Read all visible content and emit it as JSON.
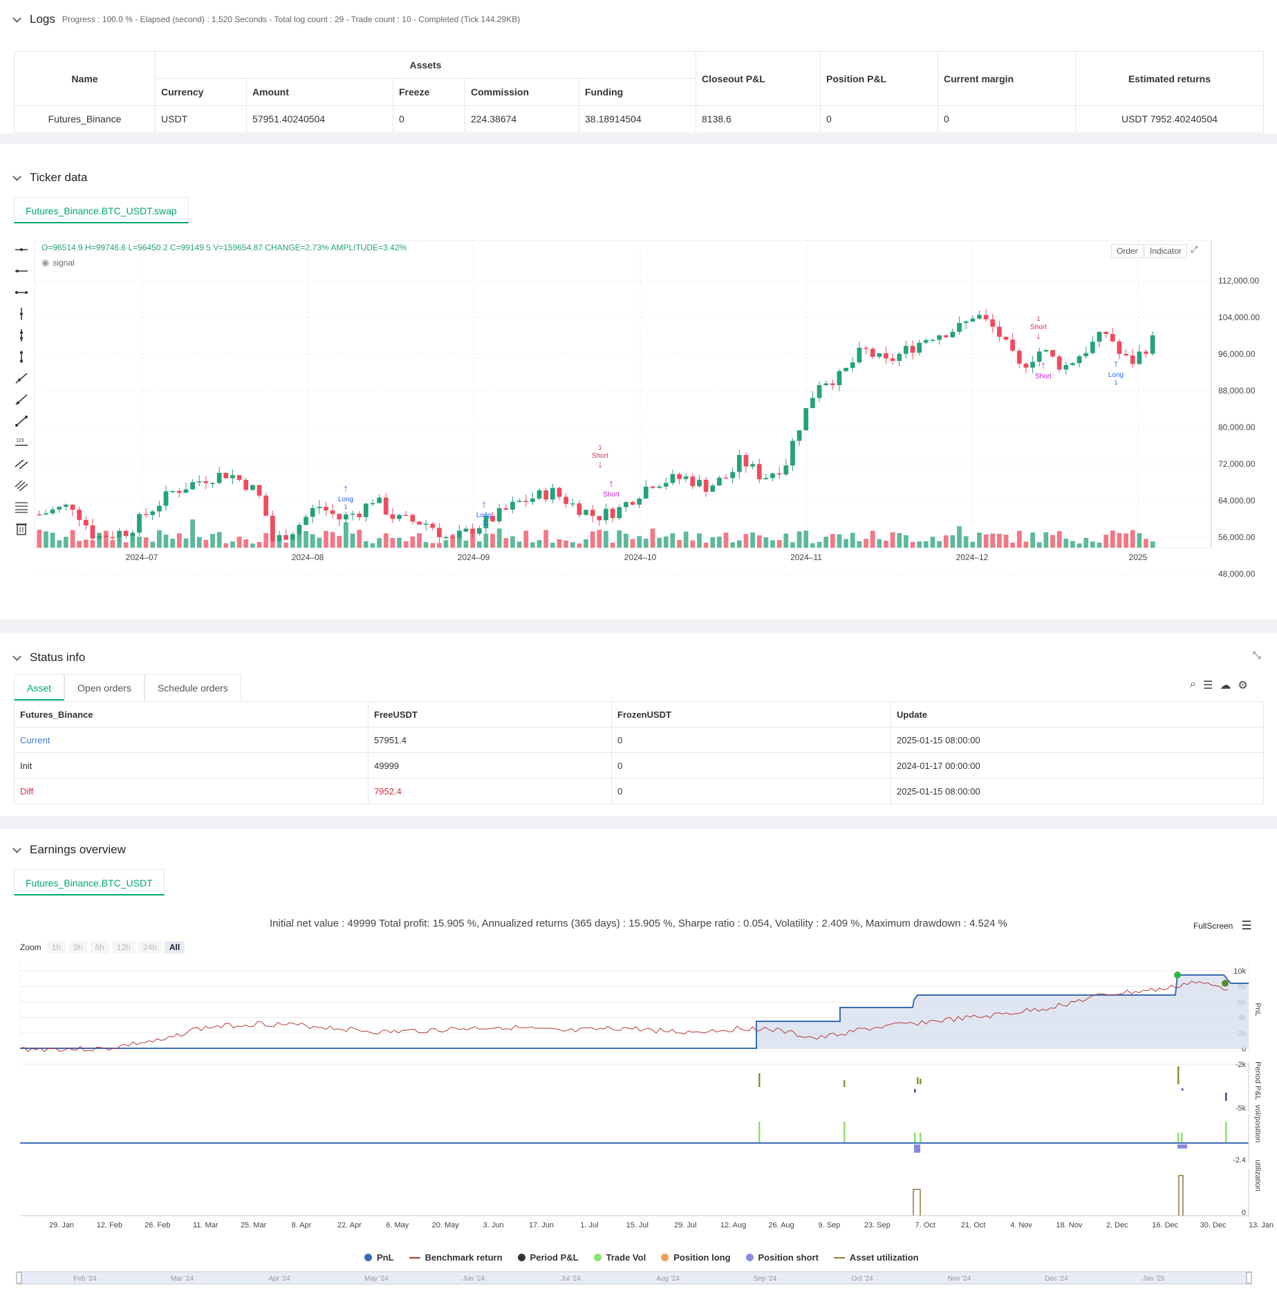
{
  "logs": {
    "title": "Logs",
    "summary": "Progress : 100.0 % - Elapsed (second) : 1.520  Seconds - Total log count : 29 - Trade count : 10 - Completed (Tick 144.29KB)",
    "table": {
      "name_header": "Name",
      "assets_header": "Assets",
      "sub_headers": [
        "Currency",
        "Amount",
        "Freeze",
        "Commission",
        "Funding"
      ],
      "right_headers": [
        "Closeout P&L",
        "Position P&L",
        "Current margin",
        "Estimated returns"
      ],
      "row": [
        "Futures_Binance",
        "USDT",
        "57951.40240504",
        "0",
        "224.38674",
        "38.18914504",
        "8138.6",
        "0",
        "0",
        "USDT 7952.40240504"
      ]
    }
  },
  "ticker": {
    "title": "Ticker data",
    "tab": "Futures_Binance.BTC_USDT.swap",
    "ohlc": "O=96514.9 H=99746.6 L=96450.2 C=99149.5 V=159654.87 CHANGE=2.73% AMPLITUDE=3.42%",
    "signal_label": "signal",
    "order_btn": "Order",
    "indicator_btn": "Indicator",
    "y_ticks": [
      "112,000.00",
      "104,000.00",
      "96,000.00",
      "88,000.00",
      "80,000.00",
      "72,000.00",
      "64,000.00",
      "56,000.00",
      "48,000.00"
    ],
    "x_ticks": [
      "2024–07",
      "2024–08",
      "2024–09",
      "2024–10",
      "2024–11",
      "2024–12",
      "2025"
    ],
    "markers": [
      {
        "text": "Long",
        "sub": "1",
        "color": "#2962ff"
      },
      {
        "text": "Long",
        "sub": "1",
        "color": "#2962ff"
      },
      {
        "text": "Short",
        "sub": "1",
        "color": "#e0294a"
      },
      {
        "text": "Short",
        "sub": "",
        "color": "#c020d0"
      },
      {
        "text": "Short",
        "sub": "1",
        "color": "#e0294a"
      },
      {
        "text": "Short",
        "sub": "",
        "color": "#c020d0"
      },
      {
        "text": "Long",
        "sub": "1",
        "color": "#2962ff"
      }
    ]
  },
  "status": {
    "title": "Status info",
    "tabs": [
      "Asset",
      "Open orders",
      "Schedule orders"
    ],
    "headers": [
      "Futures_Binance",
      "FreeUSDT",
      "FrozenUSDT",
      "Update"
    ],
    "rows": [
      {
        "label": "Current",
        "free": "57951.4",
        "frozen": "0",
        "update": "2025-01-15 08:00:00"
      },
      {
        "label": "Init",
        "free": "49999",
        "frozen": "0",
        "update": "2024-01-17 00:00:00"
      },
      {
        "label": "Diff",
        "free": "7952.4",
        "frozen": "0",
        "update": "2025-01-15 08:00:00"
      }
    ]
  },
  "earnings": {
    "title": "Earnings overview",
    "tab": "Futures_Binance.BTC_USDT",
    "summary": "Initial net value : 49999  Total profit: 15.905 %, Annualized returns (365 days) : 15.905 %, Sharpe ratio : 0.054, Volatility : 2.409 %, Maximum drawdown : 4.524 %",
    "fullscreen": "FullScreen",
    "zoom_label": "Zoom",
    "zoom_buttons": [
      "1h",
      "3h",
      "8h",
      "12h",
      "24h",
      "All"
    ],
    "pnl_ticks": [
      "10k",
      "8k",
      "6k",
      "4k",
      "2k",
      "0",
      "-2k"
    ],
    "period_ticks": [
      "-5k"
    ],
    "vol_ticks": [
      "-2.4"
    ],
    "util_ticks": [
      "0"
    ],
    "axis_titles": [
      "PnL",
      "Period P&L",
      "vol/position",
      "utilization"
    ],
    "x_ticks": [
      "29. Jan",
      "12. Feb",
      "26. Feb",
      "11. Mar",
      "25. Mar",
      "8. Apr",
      "22. Apr",
      "6. May",
      "20. May",
      "3. Jun",
      "17. Jun",
      "1. Jul",
      "15. Jul",
      "29. Jul",
      "12. Aug",
      "26. Aug",
      "9. Sep",
      "23. Sep",
      "7. Oct",
      "21. Oct",
      "4. Nov",
      "18. Nov",
      "2. Dec",
      "16. Dec",
      "30. Dec",
      "13. Jan"
    ],
    "nav_ticks": [
      "Feb '24",
      "Mar '24",
      "Apr '24",
      "May '24",
      "Jun '24",
      "Jul '24",
      "Aug '24",
      "Sep '24",
      "Oct '24",
      "Nov '24",
      "Dec '24",
      "Jan '25"
    ],
    "legend": [
      {
        "label": "PnL",
        "color": "#3a6ab5",
        "kind": "dot"
      },
      {
        "label": "Benchmark return",
        "color": "#b33a3a",
        "kind": "line"
      },
      {
        "label": "Period P&L",
        "color": "#333333",
        "kind": "dot"
      },
      {
        "label": "Trade Vol",
        "color": "#8ee070",
        "kind": "dot"
      },
      {
        "label": "Position long",
        "color": "#f0a050",
        "kind": "dot"
      },
      {
        "label": "Position short",
        "color": "#8a8ae0",
        "kind": "dot"
      },
      {
        "label": "Asset utilization",
        "color": "#8a7a3a",
        "kind": "line"
      }
    ]
  }
}
